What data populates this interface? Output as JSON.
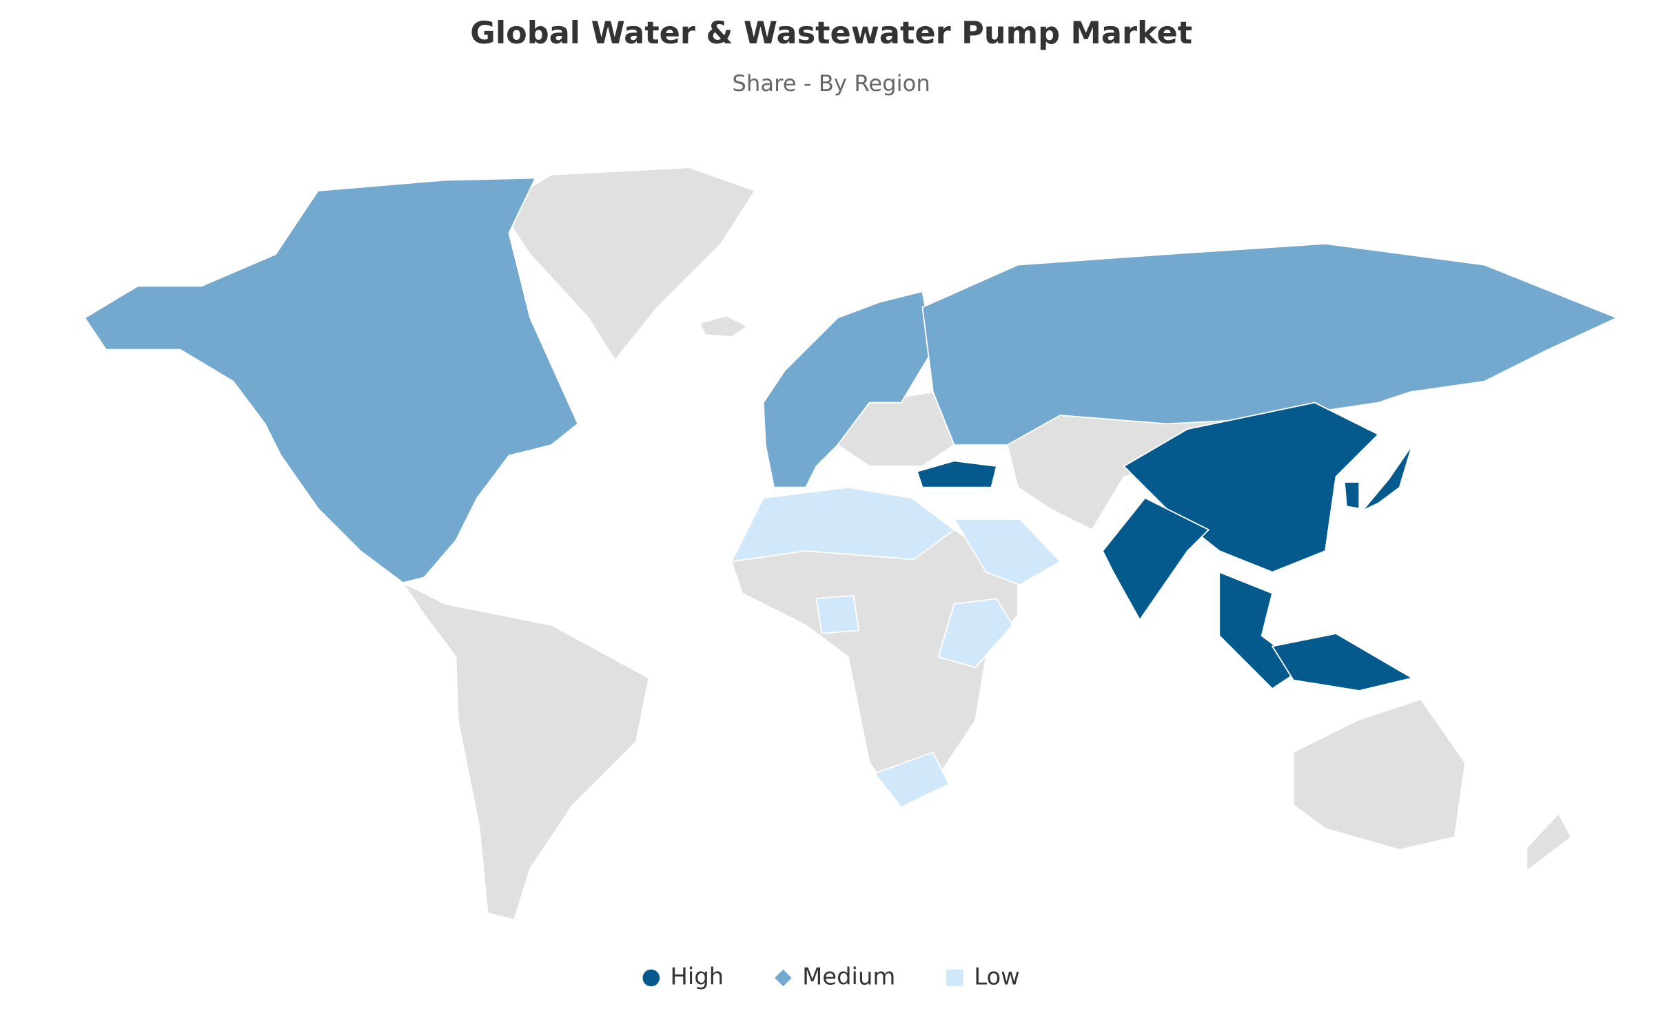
{
  "title": "Global Water & Wastewater Pump Market",
  "subtitle": "Share - By Region",
  "legend": [
    {
      "name": "High",
      "color": "#045a8d",
      "marker": "circle"
    },
    {
      "name": "Medium",
      "color": "#74a9cf",
      "marker": "diamond"
    },
    {
      "name": "Low",
      "color": "#d0e8fa",
      "marker": "square"
    }
  ]
}
